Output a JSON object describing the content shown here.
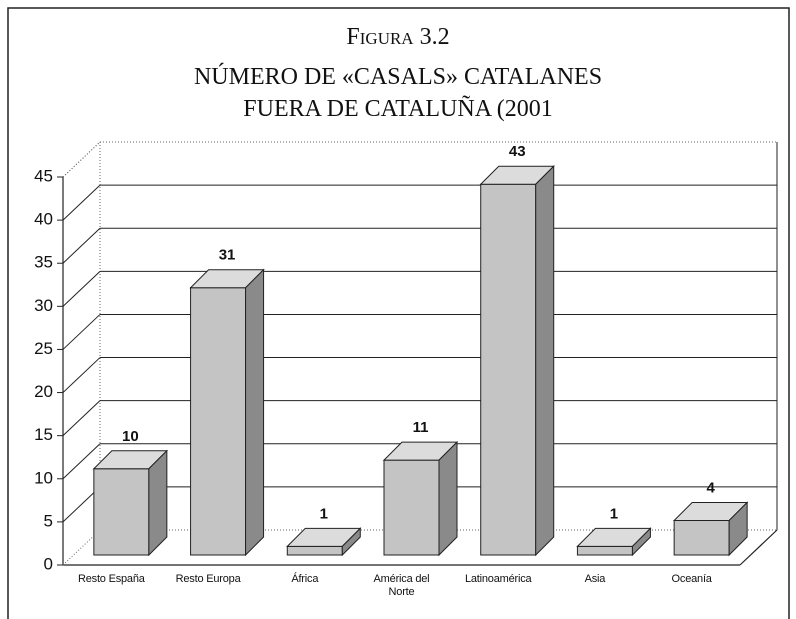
{
  "chart_data": {
    "type": "bar3d",
    "figure_label": "Figura 3.2",
    "title_lines": [
      "NÚMERO DE «CASALS» CATALANES",
      "FUERA DE CATALUÑA (2001"
    ],
    "categories": [
      "Resto España",
      "Resto Europa",
      "África",
      "América del Norte",
      "Latinoamérica",
      "Asia",
      "Oceanía"
    ],
    "values": [
      10,
      31,
      1,
      11,
      43,
      1,
      4
    ],
    "color": "#c4c4c4",
    "ylim": [
      0,
      45
    ],
    "yticks": [
      0,
      5,
      10,
      15,
      20,
      25,
      30,
      35,
      40,
      45
    ],
    "grid": true
  }
}
